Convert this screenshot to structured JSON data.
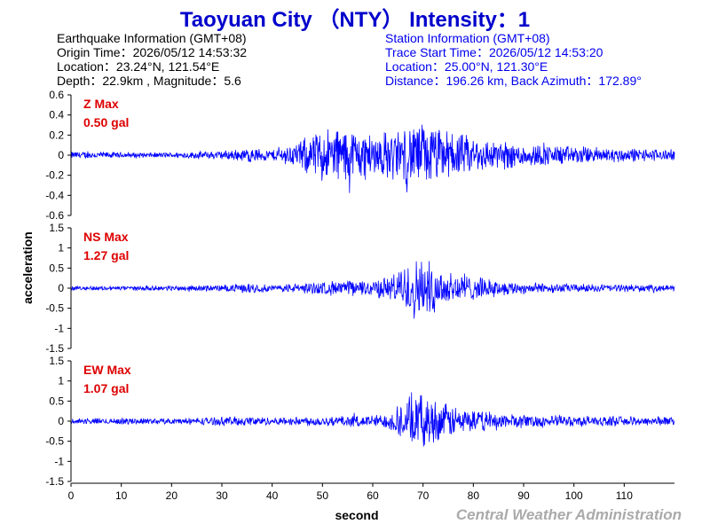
{
  "title": "Taoyuan City （NTY） Intensity：1",
  "earthquake": {
    "heading": "Earthquake Information  (GMT+08)",
    "origin_time": "Origin Time：2026/05/12 14:53:32",
    "location": "Location：23.24°N, 121.54°E",
    "depth": "Depth：22.9km , Magnitude：5.6"
  },
  "station": {
    "heading": "Station Information  (GMT+08)",
    "trace_start": "Trace Start Time：2026/05/12 14:53:20",
    "location": "Location：25.00°N, 121.30°E",
    "distance": "Distance：196.26 km, Back Azimuth：172.89°"
  },
  "footer": "Central Weather Administration",
  "colors": {
    "trace": "#0000ff",
    "title": "#0000cc",
    "max_label": "#dd0000",
    "footer": "#aaaaaa"
  },
  "chart_data": {
    "type": "line",
    "xlabel": "second",
    "ylabel": "acceleration",
    "xlim": [
      0,
      120
    ],
    "x_ticks": [
      0,
      10,
      20,
      30,
      40,
      50,
      60,
      70,
      80,
      90,
      100,
      110
    ],
    "series": [
      {
        "name": "Z",
        "max_label": "Z Max",
        "max_value": "0.50 gal",
        "ylim": [
          -0.6,
          0.6
        ],
        "y_ticks": [
          -0.6,
          -0.4,
          -0.2,
          0,
          0.2,
          0.4,
          0.6
        ],
        "y_tick_labels": [
          "-0.6",
          "-0.4",
          "-0.2",
          "0",
          "0.2",
          "0.4",
          "0.6"
        ],
        "envelope": [
          [
            0,
            0.04
          ],
          [
            5,
            0.04
          ],
          [
            10,
            0.03
          ],
          [
            20,
            0.03
          ],
          [
            30,
            0.05
          ],
          [
            36,
            0.08
          ],
          [
            40,
            0.06
          ],
          [
            45,
            0.14
          ],
          [
            48,
            0.25
          ],
          [
            52,
            0.32
          ],
          [
            56,
            0.3
          ],
          [
            60,
            0.24
          ],
          [
            64,
            0.28
          ],
          [
            68,
            0.34
          ],
          [
            70,
            0.36
          ],
          [
            74,
            0.28
          ],
          [
            80,
            0.2
          ],
          [
            90,
            0.13
          ],
          [
            100,
            0.1
          ],
          [
            110,
            0.08
          ],
          [
            120,
            0.06
          ]
        ]
      },
      {
        "name": "NS",
        "max_label": "NS Max",
        "max_value": "1.27 gal",
        "ylim": [
          -1.5,
          1.5
        ],
        "y_ticks": [
          -1.5,
          -1,
          -0.5,
          0,
          0.5,
          1,
          1.5
        ],
        "y_tick_labels": [
          "-1.5",
          "-1",
          "-0.5",
          "0",
          "0.5",
          "1",
          "1.5"
        ],
        "envelope": [
          [
            0,
            0.06
          ],
          [
            10,
            0.06
          ],
          [
            20,
            0.07
          ],
          [
            30,
            0.09
          ],
          [
            36,
            0.14
          ],
          [
            40,
            0.09
          ],
          [
            45,
            0.14
          ],
          [
            52,
            0.2
          ],
          [
            58,
            0.22
          ],
          [
            62,
            0.28
          ],
          [
            65,
            0.45
          ],
          [
            67,
            0.75
          ],
          [
            70,
            0.85
          ],
          [
            73,
            0.6
          ],
          [
            78,
            0.38
          ],
          [
            85,
            0.2
          ],
          [
            95,
            0.13
          ],
          [
            110,
            0.1
          ],
          [
            120,
            0.08
          ]
        ]
      },
      {
        "name": "EW",
        "max_label": "EW Max",
        "max_value": "1.07 gal",
        "ylim": [
          -1.5,
          1.5
        ],
        "y_ticks": [
          -1.5,
          -1,
          -0.5,
          0,
          0.5,
          1,
          1.5
        ],
        "y_tick_labels": [
          "-1.5",
          "-1",
          "-0.5",
          "0",
          "0.5",
          "1",
          "1.5"
        ],
        "envelope": [
          [
            0,
            0.08
          ],
          [
            10,
            0.09
          ],
          [
            20,
            0.08
          ],
          [
            30,
            0.12
          ],
          [
            36,
            0.14
          ],
          [
            40,
            0.1
          ],
          [
            50,
            0.14
          ],
          [
            58,
            0.16
          ],
          [
            63,
            0.2
          ],
          [
            66,
            0.55
          ],
          [
            68,
            0.75
          ],
          [
            71,
            0.7
          ],
          [
            74,
            0.5
          ],
          [
            80,
            0.3
          ],
          [
            90,
            0.18
          ],
          [
            100,
            0.15
          ],
          [
            110,
            0.13
          ],
          [
            120,
            0.12
          ]
        ]
      }
    ]
  }
}
